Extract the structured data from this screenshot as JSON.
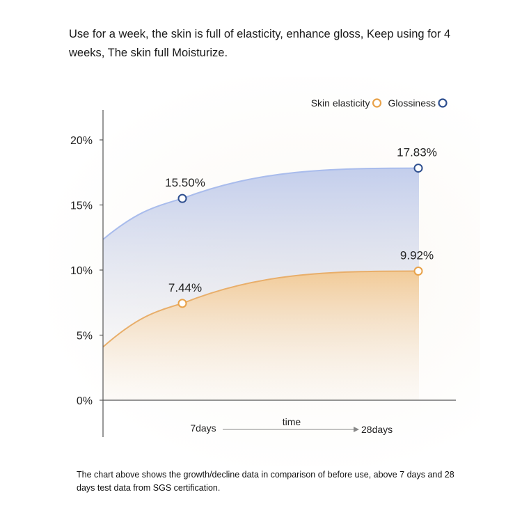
{
  "headline": "Use for a week, the skin is full of elasticity, enhance gloss, Keep using for 4 weeks, The skin full Moisturize.",
  "footnote": "The chart above shows the growth/decline data in comparison of before use, above 7 days and 28 days test data from SGS certification.",
  "chart_data": {
    "type": "area",
    "title": "",
    "xlabel": "time",
    "ylabel": "",
    "x_tick_labels": [
      "7days",
      "28days"
    ],
    "y_tick_labels": [
      "0%",
      "5%",
      "10%",
      "15%",
      "20%"
    ],
    "ylim": [
      0,
      20
    ],
    "grid": false,
    "legend_position": "top-right",
    "series": [
      {
        "name": "Skin elasticity",
        "color": "#e8a24a",
        "x": [
          "7days",
          "28days"
        ],
        "values": [
          7.44,
          9.92
        ],
        "labels": [
          "7.44%",
          "9.92%"
        ]
      },
      {
        "name": "Glossiness",
        "color": "#2e4f8f",
        "x": [
          "7days",
          "28days"
        ],
        "values": [
          15.5,
          17.83
        ],
        "labels": [
          "15.50%",
          "17.83%"
        ]
      }
    ]
  }
}
